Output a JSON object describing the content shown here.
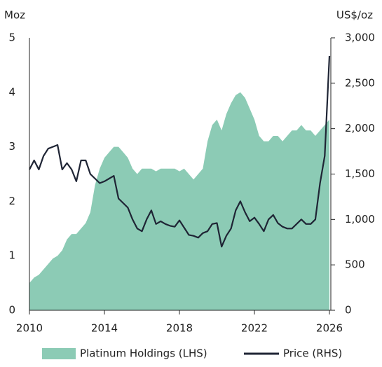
{
  "chart_data": {
    "type": "area-line",
    "y_label": "Moz",
    "y2_label": "US$/oz",
    "x": [
      2010,
      2010.25,
      2010.5,
      2010.75,
      2011,
      2011.25,
      2011.5,
      2011.75,
      2012,
      2012.25,
      2012.5,
      2012.75,
      2013,
      2013.25,
      2013.5,
      2013.75,
      2014,
      2014.25,
      2014.5,
      2014.75,
      2015,
      2015.25,
      2015.5,
      2015.75,
      2016,
      2016.25,
      2016.5,
      2016.75,
      2017,
      2017.25,
      2017.5,
      2017.75,
      2018,
      2018.25,
      2018.5,
      2018.75,
      2019,
      2019.25,
      2019.5,
      2019.75,
      2020,
      2020.25,
      2020.5,
      2020.75,
      2021,
      2021.25,
      2021.5,
      2021.75,
      2022,
      2022.25,
      2022.5,
      2022.75,
      2023,
      2023.25,
      2023.5,
      2023.75,
      2024,
      2024.25,
      2024.5,
      2024.75,
      2025,
      2025.25,
      2025.5,
      2025.75,
      2026
    ],
    "series": [
      {
        "name": "Platinum Holdings (LHS)",
        "color": "#8ccbb5",
        "axis": "y",
        "values": [
          0.5,
          0.6,
          0.65,
          0.75,
          0.85,
          0.95,
          1.0,
          1.1,
          1.3,
          1.4,
          1.4,
          1.5,
          1.6,
          1.8,
          2.3,
          2.6,
          2.8,
          2.9,
          3.0,
          3.0,
          2.9,
          2.8,
          2.6,
          2.5,
          2.6,
          2.6,
          2.6,
          2.55,
          2.6,
          2.6,
          2.6,
          2.6,
          2.55,
          2.6,
          2.5,
          2.4,
          2.5,
          2.6,
          3.1,
          3.4,
          3.5,
          3.3,
          3.6,
          3.8,
          3.95,
          4.0,
          3.9,
          3.7,
          3.5,
          3.2,
          3.1,
          3.1,
          3.2,
          3.2,
          3.1,
          3.2,
          3.3,
          3.3,
          3.4,
          3.3,
          3.3,
          3.2,
          3.3,
          3.4,
          3.5
        ]
      },
      {
        "name": "Price (RHS)",
        "color": "#1f2535",
        "axis": "y2",
        "values": [
          1550,
          1650,
          1550,
          1700,
          1780,
          1800,
          1820,
          1550,
          1620,
          1550,
          1420,
          1650,
          1650,
          1500,
          1450,
          1400,
          1420,
          1450,
          1480,
          1230,
          1180,
          1130,
          1000,
          900,
          870,
          1000,
          1100,
          950,
          980,
          950,
          930,
          920,
          990,
          910,
          830,
          820,
          800,
          850,
          870,
          950,
          960,
          700,
          820,
          900,
          1100,
          1200,
          1080,
          980,
          1020,
          950,
          870,
          1000,
          1050,
          960,
          920,
          900,
          900,
          950,
          1000,
          950,
          950,
          1000,
          1400,
          1700,
          2800
        ]
      }
    ],
    "xlim": [
      2010,
      2026
    ],
    "xticks": [
      2010,
      2014,
      2018,
      2022,
      2026
    ],
    "ylim": [
      0,
      5
    ],
    "yticks": [
      0,
      1,
      2,
      3,
      4,
      5
    ],
    "y2lim": [
      0,
      3000
    ],
    "y2ticks": [
      0,
      500,
      {
        "value": 1000,
        "label": "1,000"
      },
      {
        "value": 1500,
        "label": "1,500"
      },
      {
        "value": 2000,
        "label": "2,000"
      },
      {
        "value": 2500,
        "label": "2,500"
      },
      {
        "value": 3000,
        "label": "3,000"
      }
    ],
    "legend": "bottom"
  }
}
